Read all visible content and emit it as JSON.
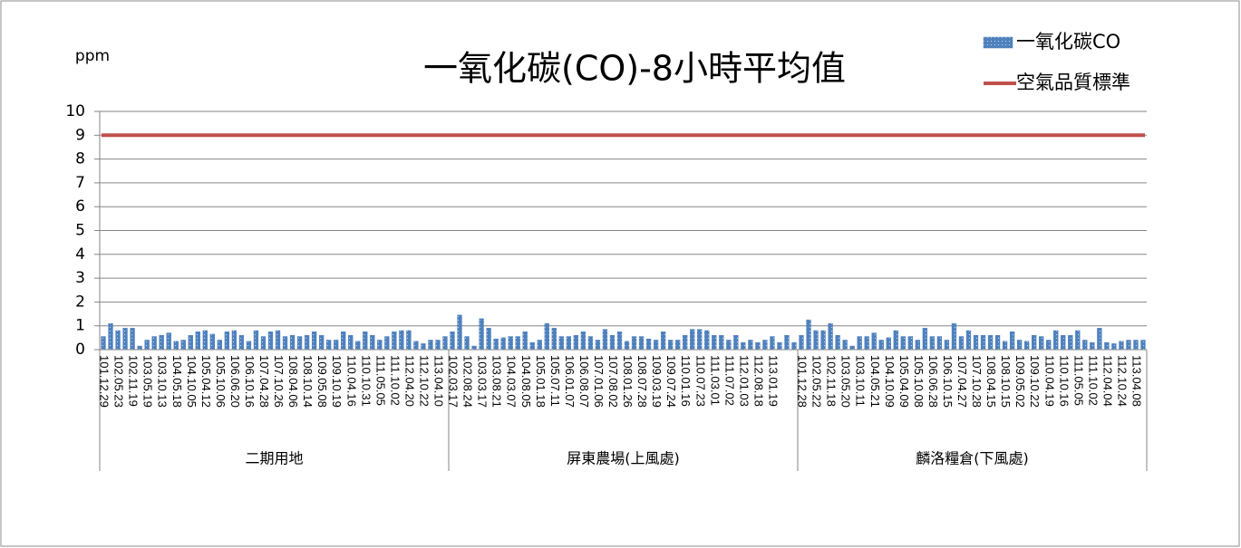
{
  "chart_data": {
    "type": "bar",
    "title": "一氧化碳(CO)-8小時平均值",
    "y_label": "ppm",
    "ylim": [
      0,
      10
    ],
    "yticks": [
      0,
      1,
      2,
      3,
      4,
      5,
      6,
      7,
      8,
      9,
      10
    ],
    "grid": true,
    "legend": "top-right",
    "groups": [
      {
        "label": "二期用地",
        "categories": [
          "101.12.29",
          null,
          "102.05.23",
          null,
          "102.11.19",
          null,
          "103.05.19",
          null,
          "103.10.13",
          null,
          "104.05.18",
          null,
          "104.10.05",
          null,
          "105.04.12",
          null,
          "105.10.06",
          null,
          "106.06.20",
          null,
          "106.10.16",
          null,
          "107.04.28",
          null,
          "107.10.26",
          null,
          "108.04.06",
          null,
          "108.10.14",
          null,
          "109.05.08",
          null,
          "109.10.19",
          null,
          "110.04.16",
          null,
          "110.10.31",
          null,
          "111.05.05",
          null,
          "111.10.02",
          null,
          "112.04.20",
          null,
          "112.10.22",
          null,
          "113.04.10",
          null
        ]
      },
      {
        "label": "屏東農場(上風處)",
        "categories": [
          "102.03.17",
          null,
          "102.08.24",
          null,
          "103.03.17",
          null,
          "103.08.21",
          null,
          "104.03.07",
          null,
          "104.08.05",
          null,
          "105.01.18",
          null,
          "105.07.11",
          null,
          "106.01.07",
          null,
          "106.08.07",
          null,
          "107.01.06",
          null,
          "107.08.02",
          null,
          "108.01.26",
          null,
          "108.07.28",
          null,
          "109.03.19",
          null,
          "109.07.24",
          null,
          "110.01.16",
          null,
          "110.07.23",
          null,
          "111.03.01",
          null,
          "111.07.02",
          null,
          "112.01.03",
          null,
          "112.08.18",
          null,
          "113.01.19",
          null,
          null,
          null
        ]
      },
      {
        "label": "麟洛糧倉(下風處)",
        "categories": [
          "101.12.28",
          null,
          "102.05.22",
          null,
          "102.11.18",
          null,
          "103.05.20",
          null,
          "103.10.11",
          null,
          "104.05.21",
          null,
          "104.10.09",
          null,
          "105.04.09",
          null,
          "105.10.08",
          null,
          "106.06.28",
          null,
          "106.10.15",
          null,
          "107.04.27",
          null,
          "107.10.28",
          null,
          "108.04.15",
          null,
          "108.10.15",
          null,
          "109.05.02",
          null,
          "109.10.22",
          null,
          "110.04.19",
          null,
          "110.10.16",
          null,
          "111.05.05",
          null,
          "111.10.02",
          null,
          "112.04.04",
          null,
          "112.10.24",
          null,
          "113.04.08",
          null
        ]
      }
    ],
    "series": [
      {
        "name": "一氧化碳CO",
        "type": "bar",
        "color": "#4f81bd",
        "values": [
          0.55,
          1.1,
          0.8,
          0.9,
          0.9,
          0.15,
          0.4,
          0.55,
          0.6,
          0.7,
          0.35,
          0.4,
          0.6,
          0.75,
          0.8,
          0.65,
          0.4,
          0.75,
          0.8,
          0.6,
          0.35,
          0.8,
          0.55,
          0.75,
          0.8,
          0.55,
          0.6,
          0.55,
          0.6,
          0.75,
          0.6,
          0.4,
          0.4,
          0.75,
          0.6,
          0.35,
          0.75,
          0.6,
          0.4,
          0.55,
          0.75,
          0.8,
          0.8,
          0.35,
          0.25,
          0.4,
          0.4,
          0.55,
          0.75,
          1.45,
          0.55,
          0.15,
          1.3,
          0.9,
          0.45,
          0.5,
          0.55,
          0.55,
          0.75,
          0.3,
          0.4,
          1.1,
          0.9,
          0.55,
          0.55,
          0.6,
          0.75,
          0.55,
          0.4,
          0.85,
          0.6,
          0.75,
          0.35,
          0.55,
          0.55,
          0.45,
          0.4,
          0.75,
          0.4,
          0.4,
          0.6,
          0.85,
          0.85,
          0.8,
          0.6,
          0.6,
          0.4,
          0.6,
          0.3,
          0.4,
          0.3,
          0.4,
          0.55,
          0.3,
          0.6,
          0.3,
          0.6,
          1.25,
          0.8,
          0.8,
          1.1,
          0.6,
          0.4,
          0.15,
          0.55,
          0.55,
          0.7,
          0.4,
          0.5,
          0.8,
          0.55,
          0.55,
          0.4,
          0.9,
          0.55,
          0.55,
          0.4,
          1.1,
          0.55,
          0.8,
          0.6,
          0.6,
          0.6,
          0.6,
          0.35,
          0.75,
          0.4,
          0.35,
          0.6,
          0.55,
          0.4,
          0.8,
          0.6,
          0.6,
          0.8,
          0.4,
          0.3,
          0.9,
          0.3,
          0.25,
          0.35,
          0.4,
          0.4,
          0.4
        ]
      },
      {
        "name": "空氣品質標準",
        "type": "line",
        "color": "#c0504d",
        "value": 9
      }
    ]
  }
}
